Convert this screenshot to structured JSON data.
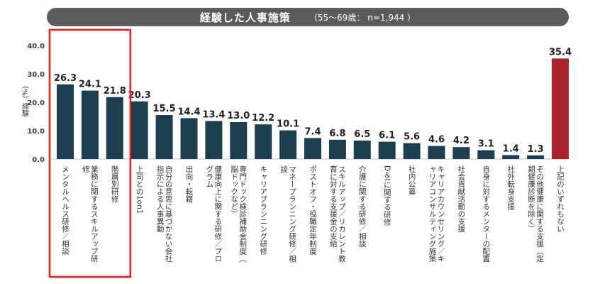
{
  "header": {
    "title": "経験した人事施策",
    "subtitle": "（55〜69歳： n=1,944 ）"
  },
  "chart_data": {
    "type": "bar",
    "title": "経験した人事施策",
    "subtitle": "（55〜69歳： n=1,944 ）",
    "ylabel": "（%）経験",
    "ylim": [
      0,
      40
    ],
    "yticks": [
      "0.0",
      "10.0",
      "20.0",
      "30.0",
      "40.0"
    ],
    "grid": false,
    "legend": "none",
    "categories": [
      "メンタルヘルス研修／相談",
      "業務に関するスキルアップ研修",
      "階層別研修",
      "上司との1on1",
      "自分の意思に基づかない会社指示による人事異動",
      "出向・転籍",
      "健康向上に関する研修／プログラム",
      "専門ドック検診補助金制度（脳ドックなど）",
      "キャリアプランニング研修",
      "マネープランニング研修／相談",
      "ポストオフ・役職定年制度",
      "スキルアップ／リカレント教育に対する支援金の支給",
      "介護に関する研修／相談",
      "D＆Iに関する研修",
      "社内公募",
      "キャリアカウンセリング／キャリアコンサルティング施策",
      "社会貢献活動の支援",
      "自身に対するメンターの配置",
      "社外転身支援",
      "その他健康に関する支援（定期健康診断を除く）",
      "上記のいずれもない"
    ],
    "values": [
      26.3,
      24.1,
      21.8,
      20.3,
      15.5,
      14.4,
      13.4,
      13.0,
      12.2,
      10.1,
      7.4,
      6.8,
      6.5,
      6.1,
      5.6,
      4.6,
      4.2,
      3.1,
      1.4,
      1.3,
      35.4
    ],
    "value_labels": [
      "26.3",
      "24.1",
      "21.8",
      "20.3",
      "15.5",
      "14.4",
      "13.4",
      "13.0",
      "12.2",
      "10.1",
      "7.4",
      "6.8",
      "6.5",
      "6.1",
      "5.6",
      "4.6",
      "4.2",
      "3.1",
      "1.4",
      "1.3",
      "35.4"
    ],
    "highlight_index": 20,
    "highlight_box_categories": [
      0,
      1,
      2
    ],
    "colors": {
      "bar": "#1b3f4f",
      "highlight_bar": "#a92429",
      "highlight_box": "#ff1a1a",
      "axis": "#bfbfbf",
      "title_bg": "#5b5b5b"
    }
  }
}
